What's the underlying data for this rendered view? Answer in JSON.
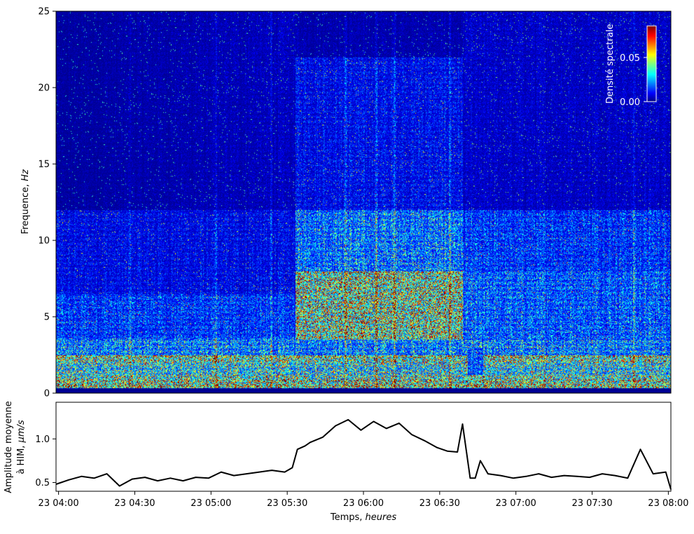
{
  "chart_data": [
    {
      "type": "heatmap",
      "ylabel": "Frequence, Hz",
      "ylabel_text": "Frequence, ",
      "ylabel_unit": "Hz",
      "ylim": [
        0,
        25
      ],
      "yticks": [
        0,
        5,
        10,
        15,
        20,
        25
      ],
      "ytick_labels": [
        "0",
        "5",
        "10",
        "15",
        "20",
        "25"
      ],
      "colormap": "jet",
      "colorbar": {
        "label": "Densité spectrale",
        "ticks": [
          0.0,
          0.05
        ],
        "tick_labels": [
          "0.00",
          "0.05"
        ],
        "range": [
          0.0,
          0.085
        ],
        "placement": "upper-right, inside axes"
      },
      "features": [
        {
          "from": "23 04:00",
          "to": "23 08:00",
          "freq_hz": [
            0,
            2.5
          ],
          "level": "high"
        },
        {
          "from": "23 05:35",
          "to": "23 06:40",
          "freq_hz": [
            3.5,
            8
          ],
          "level": "very high"
        },
        {
          "from": "23 05:35",
          "to": "23 08:00",
          "freq_hz": [
            8,
            12
          ],
          "level": "moderate"
        },
        {
          "from": "23 04:00",
          "to": "23 05:35",
          "freq_hz": [
            2.5,
            6
          ],
          "level": "moderate"
        }
      ]
    },
    {
      "type": "line",
      "xlabel": "Temps, heures",
      "xlabel_text": "Temps, ",
      "xlabel_unit": "heures",
      "ylabel_line1": "Amplitude moyenne",
      "ylabel_line2_text": "à HIM, ",
      "ylabel_line2_unit": "µm/s",
      "xticks": [
        "23 04:00",
        "23 04:30",
        "23 05:00",
        "23 05:30",
        "23 06:00",
        "23 06:30",
        "23 07:00",
        "23 07:30",
        "23 08:00"
      ],
      "xlim": [
        "23 03:59",
        "23 08:01"
      ],
      "yticks": [
        0.5,
        1.0
      ],
      "ytick_labels": [
        "0.5",
        "1.0"
      ],
      "ylim": [
        0.4,
        1.42
      ],
      "color": "#000000",
      "series": [
        {
          "x_minutes_from_04:00": [
            -1,
            4,
            9,
            14,
            19,
            24,
            29,
            34,
            39,
            44,
            49,
            54,
            59,
            64,
            69,
            74,
            79,
            84,
            89,
            92,
            94,
            97,
            99,
            104,
            109,
            114,
            119,
            124,
            129,
            134,
            139,
            144,
            149,
            153,
            157,
            159,
            162,
            164,
            166,
            169,
            174,
            179,
            184,
            189,
            194,
            199,
            204,
            209,
            214,
            219,
            224,
            229,
            234,
            239,
            241
          ],
          "x": [
            "23 03:59",
            "23 04:04",
            "23 04:09",
            "23 04:14",
            "23 04:19",
            "23 04:24",
            "23 04:29",
            "23 04:34",
            "23 04:39",
            "23 04:44",
            "23 04:49",
            "23 04:54",
            "23 04:59",
            "23 05:04",
            "23 05:09",
            "23 05:14",
            "23 05:19",
            "23 05:24",
            "23 05:29",
            "23 05:32",
            "23 05:34",
            "23 05:37",
            "23 05:39",
            "23 05:44",
            "23 05:49",
            "23 05:54",
            "23 05:59",
            "23 06:04",
            "23 06:09",
            "23 06:14",
            "23 06:19",
            "23 06:24",
            "23 06:29",
            "23 06:33",
            "23 06:37",
            "23 06:39",
            "23 06:42",
            "23 06:44",
            "23 06:46",
            "23 06:49",
            "23 06:54",
            "23 06:59",
            "23 07:04",
            "23 07:09",
            "23 07:14",
            "23 07:19",
            "23 07:24",
            "23 07:29",
            "23 07:34",
            "23 07:39",
            "23 07:44",
            "23 07:49",
            "23 07:54",
            "23 07:59",
            "23 08:01"
          ],
          "values": [
            0.48,
            0.53,
            0.57,
            0.55,
            0.6,
            0.46,
            0.54,
            0.56,
            0.52,
            0.55,
            0.52,
            0.56,
            0.55,
            0.62,
            0.58,
            0.6,
            0.62,
            0.64,
            0.62,
            0.67,
            0.88,
            0.92,
            0.96,
            1.02,
            1.15,
            1.22,
            1.1,
            1.2,
            1.12,
            1.18,
            1.05,
            0.98,
            0.9,
            0.86,
            0.85,
            1.17,
            0.55,
            0.55,
            0.75,
            0.6,
            0.58,
            0.55,
            0.57,
            0.6,
            0.56,
            0.58,
            0.57,
            0.56,
            0.6,
            0.58,
            0.55,
            0.88,
            0.6,
            0.62,
            0.42
          ]
        }
      ]
    }
  ]
}
